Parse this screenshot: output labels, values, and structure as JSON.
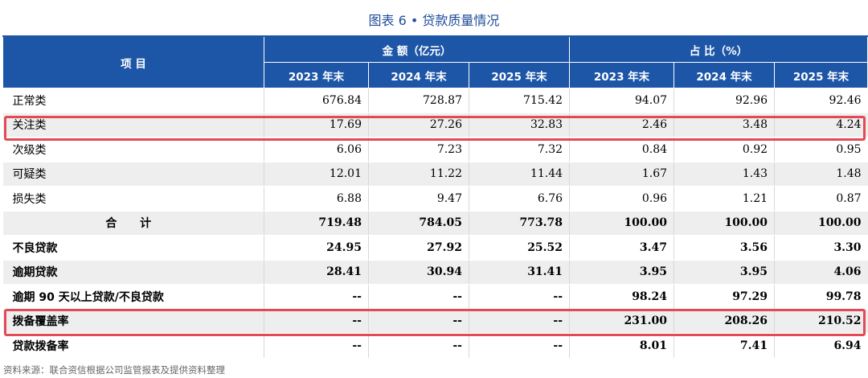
{
  "title": "图表 6 • 贷款质量情况",
  "header": {
    "item_label": "项 目",
    "amount_group": "金 额（亿元）",
    "ratio_group": "占 比（%）",
    "years": [
      "2023 年末",
      "2024 年末",
      "2025 年末",
      "2023 年末",
      "2024 年末",
      "2025 年末"
    ]
  },
  "rows": [
    {
      "label": "正常类",
      "values": [
        "676.84",
        "728.87",
        "715.42",
        "94.07",
        "92.96",
        "92.46"
      ]
    },
    {
      "label": "关注类",
      "values": [
        "17.69",
        "27.26",
        "32.83",
        "2.46",
        "3.48",
        "4.24"
      ]
    },
    {
      "label": "次级类",
      "values": [
        "6.06",
        "7.23",
        "7.32",
        "0.84",
        "0.92",
        "0.95"
      ]
    },
    {
      "label": "可疑类",
      "values": [
        "12.01",
        "11.22",
        "11.44",
        "1.67",
        "1.43",
        "1.48"
      ]
    },
    {
      "label": "损失类",
      "values": [
        "6.88",
        "9.47",
        "6.76",
        "0.96",
        "1.21",
        "0.87"
      ]
    },
    {
      "label": "合 计",
      "values": [
        "719.48",
        "784.05",
        "773.78",
        "100.00",
        "100.00",
        "100.00"
      ]
    },
    {
      "label": "不良贷款",
      "values": [
        "24.95",
        "27.92",
        "25.52",
        "3.47",
        "3.56",
        "3.30"
      ]
    },
    {
      "label": "逾期贷款",
      "values": [
        "28.41",
        "30.94",
        "31.41",
        "3.95",
        "3.95",
        "4.06"
      ]
    },
    {
      "label": "逾期 90 天以上贷款/不良贷款",
      "values": [
        "--",
        "--",
        "--",
        "98.24",
        "97.29",
        "99.78"
      ]
    },
    {
      "label": "拨备覆盖率",
      "values": [
        "--",
        "--",
        "--",
        "231.00",
        "208.26",
        "210.52"
      ]
    },
    {
      "label": "贷款拨备率",
      "values": [
        "--",
        "--",
        "--",
        "8.01",
        "7.41",
        "6.94"
      ]
    }
  ],
  "highlight_color": "#e34a55",
  "header_color": "#1d56a7",
  "source": "资料来源：联合资信根据公司监管报表及提供资料整理"
}
